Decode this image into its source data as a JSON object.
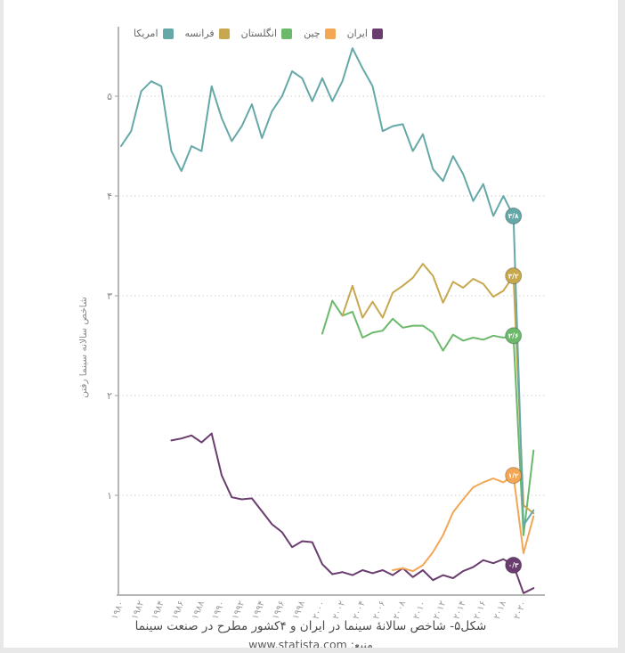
{
  "page": {
    "caption_line1": "شکل۵- شاخص سالانهٔ سینما در ایران و ۴کشور مطرح در صنعت سینما",
    "caption_line2": "منبع: www.statista.com"
  },
  "legend": {
    "position": "top",
    "items": [
      {
        "label": "ایران",
        "color": "#6a3d6f"
      },
      {
        "label": "چین",
        "color": "#f3a653"
      },
      {
        "label": "انگلستان",
        "color": "#6cb96c"
      },
      {
        "label": "فرانسه",
        "color": "#c7a84f"
      },
      {
        "label": "امریکا",
        "color": "#66a8a8"
      }
    ]
  },
  "chart_data": {
    "type": "line",
    "title": "شکل۵- شاخص سالانهٔ سینما در ایران و ۴کشور مطرح در صنعت سینما",
    "source": "منبع: www.statista.com",
    "xlabel": "",
    "ylabel": "شاخص سالانه سینما رفتن",
    "xlim": [
      1979,
      2022
    ],
    "ylim": [
      0,
      5.6
    ],
    "grid": "dotted-horizontal",
    "legend_position": "top",
    "x_tick_years": [
      1980,
      1982,
      1984,
      1986,
      1988,
      1990,
      1992,
      1994,
      1996,
      1998,
      2000,
      2002,
      2004,
      2006,
      2008,
      2010,
      2012,
      2014,
      2016,
      2018,
      2020
    ],
    "x_tick_labels": [
      "۱۹۸۰",
      "۱۹۸۲",
      "۱۹۸۴",
      "۱۹۸۶",
      "۱۹۸۸",
      "۱۹۹۰",
      "۱۹۹۲",
      "۱۹۹۴",
      "۱۹۹۶",
      "۱۹۹۸",
      "۲۰۰۰",
      "۲۰۰۲",
      "۲۰۰۴",
      "۲۰۰۶",
      "۲۰۰۸",
      "۲۰۱۰",
      "۲۰۱۲",
      "۲۰۱۴",
      "۲۰۱۶",
      "۲۰۱۸",
      "۲۰۲۰"
    ],
    "y_tick_values": [
      1,
      2,
      3,
      4,
      5
    ],
    "y_tick_labels": [
      "۱",
      "۲",
      "۳",
      "۴",
      "۵"
    ],
    "series": [
      {
        "name": "ایران",
        "name_en": "iran",
        "color": "#6a3d6f",
        "start_year": 1985,
        "end_label": "۰/۳",
        "end_label_year": 2019,
        "values": [
          1.55,
          1.57,
          1.6,
          1.53,
          1.62,
          1.2,
          0.98,
          0.96,
          0.97,
          0.84,
          0.71,
          0.63,
          0.48,
          0.54,
          0.53,
          0.31,
          0.21,
          0.23,
          0.2,
          0.25,
          0.22,
          0.25,
          0.2,
          0.27,
          0.18,
          0.25,
          0.15,
          0.2,
          0.17,
          0.24,
          0.28,
          0.35,
          0.32,
          0.36,
          0.3,
          0.02,
          0.07
        ]
      },
      {
        "name": "چین",
        "name_en": "china",
        "color": "#f3a653",
        "start_year": 2007,
        "end_label": "۱/۲",
        "end_label_year": 2019,
        "values": [
          0.25,
          0.27,
          0.24,
          0.3,
          0.43,
          0.6,
          0.83,
          0.96,
          1.08,
          1.13,
          1.17,
          1.13,
          1.2,
          0.42,
          0.79
        ]
      },
      {
        "name": "انگلستان",
        "name_en": "england",
        "color": "#6cb96c",
        "start_year": 2000,
        "end_label": "۲/۶",
        "end_label_year": 2019,
        "values": [
          2.62,
          2.95,
          2.8,
          2.84,
          2.58,
          2.63,
          2.65,
          2.77,
          2.68,
          2.7,
          2.7,
          2.63,
          2.45,
          2.61,
          2.55,
          2.58,
          2.56,
          2.6,
          2.58,
          2.6,
          0.6,
          1.45
        ]
      },
      {
        "name": "فرانسه",
        "name_en": "france",
        "color": "#c7a84f",
        "start_year": 2002,
        "end_label": "۳/۲",
        "end_label_year": 2019,
        "values": [
          2.8,
          3.1,
          2.78,
          2.94,
          2.78,
          3.03,
          3.1,
          3.18,
          3.32,
          3.2,
          2.93,
          3.14,
          3.08,
          3.17,
          3.12,
          2.99,
          3.05,
          3.2,
          0.9,
          0.82
        ]
      },
      {
        "name": "امریکا",
        "name_en": "america",
        "color": "#66a8a8",
        "start_year": 1980,
        "end_label": "۳/۸",
        "end_label_year": 2019,
        "values": [
          4.5,
          4.65,
          5.05,
          5.15,
          5.1,
          4.45,
          4.25,
          4.5,
          4.45,
          5.1,
          4.78,
          4.55,
          4.7,
          4.92,
          4.58,
          4.85,
          5.0,
          5.25,
          5.18,
          4.95,
          5.18,
          4.95,
          5.15,
          5.48,
          5.28,
          5.1,
          4.65,
          4.7,
          4.72,
          4.45,
          4.62,
          4.27,
          4.15,
          4.4,
          4.22,
          3.95,
          4.12,
          3.8,
          4.0,
          3.8,
          0.7,
          0.85
        ]
      }
    ]
  }
}
